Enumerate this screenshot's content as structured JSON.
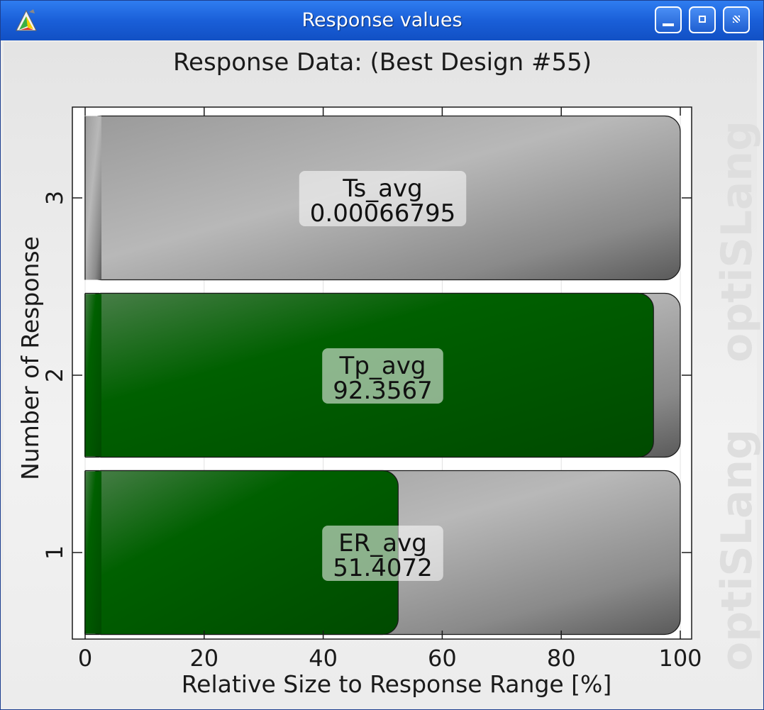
{
  "window": {
    "title": "Response values"
  },
  "watermark": "optiSLang",
  "chart_data": {
    "type": "bar",
    "orientation": "horizontal",
    "title": "Response Data: (Best Design #55)",
    "xlabel": "Relative Size to Response Range [%]",
    "ylabel": "Number of Response",
    "xlim": [
      0,
      100
    ],
    "xticks": [
      0,
      20,
      40,
      60,
      80,
      100
    ],
    "categories": [
      "1",
      "2",
      "3"
    ],
    "bars": [
      {
        "number": "1",
        "name": "ER_avg",
        "value_label": "51.4072",
        "relative_percent": 52.6
      },
      {
        "number": "2",
        "name": "Tp_avg",
        "value_label": "92.3567",
        "relative_percent": 95.5
      },
      {
        "number": "3",
        "name": "Ts_avg",
        "value_label": "0.00066795",
        "relative_percent": 0
      }
    ],
    "grid": true,
    "colors": {
      "fill": "#006400",
      "background_bar": "#a8a8a8"
    }
  }
}
